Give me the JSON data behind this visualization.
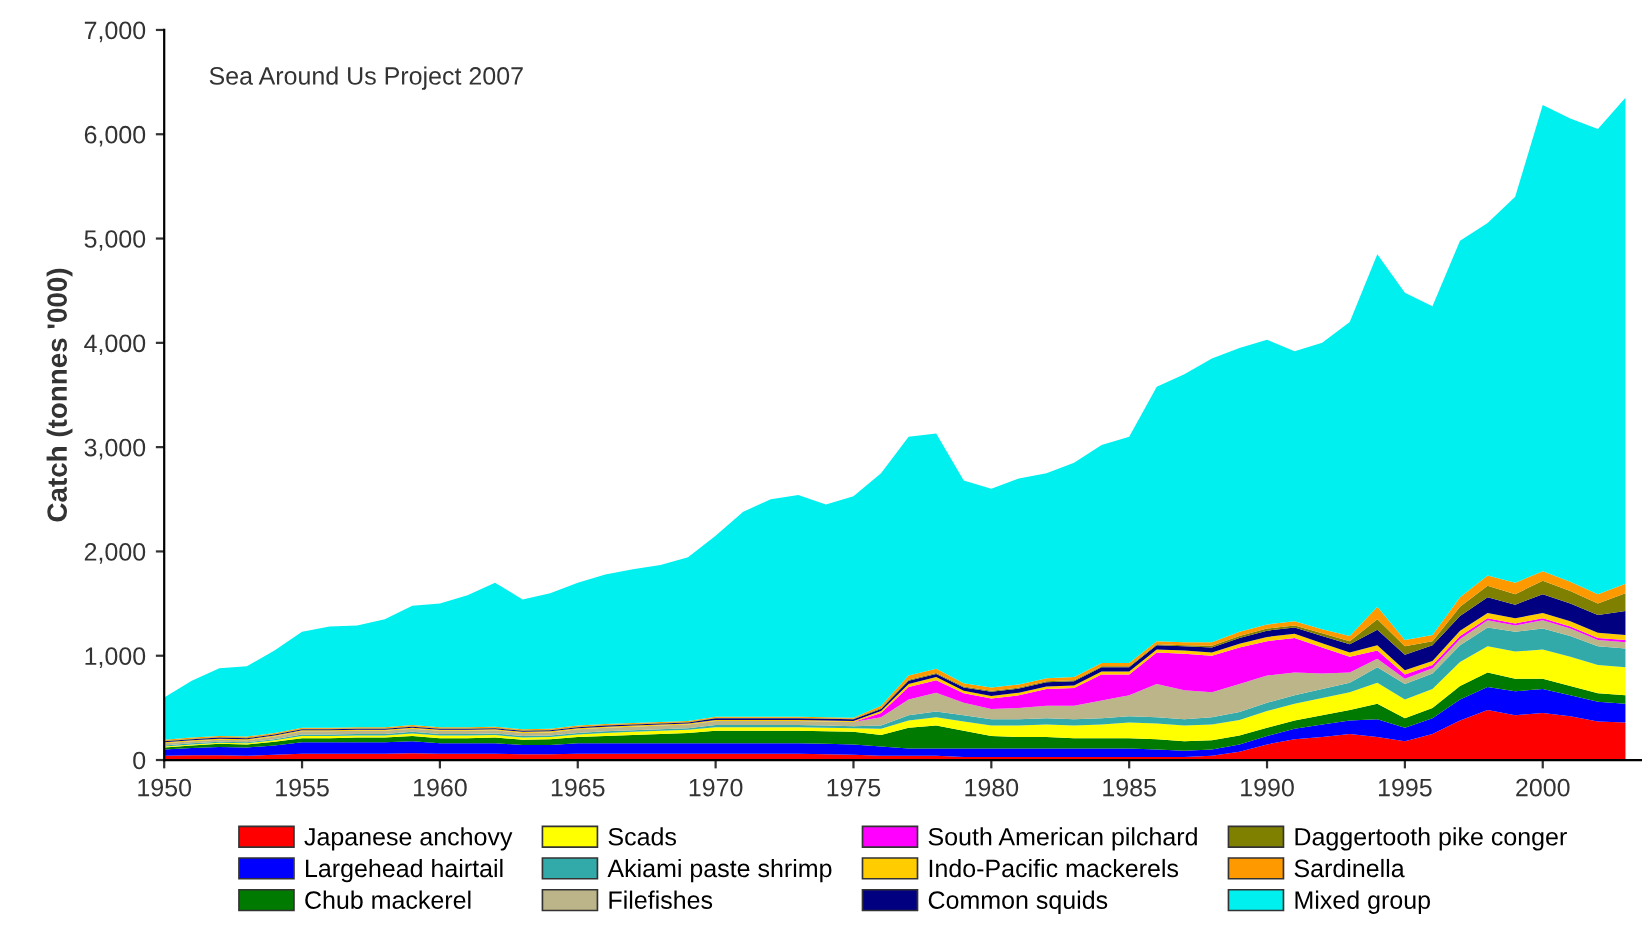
{
  "chart_data": {
    "type": "area",
    "stacked": true,
    "ylabel": "Catch (tonnes '000)",
    "annotations": [
      "Sea Around Us Project 2007"
    ],
    "x": [
      1950,
      1951,
      1952,
      1953,
      1954,
      1955,
      1956,
      1957,
      1958,
      1959,
      1960,
      1961,
      1962,
      1963,
      1964,
      1965,
      1966,
      1967,
      1968,
      1969,
      1970,
      1971,
      1972,
      1973,
      1974,
      1975,
      1976,
      1977,
      1978,
      1979,
      1980,
      1981,
      1982,
      1983,
      1984,
      1985,
      1986,
      1987,
      1988,
      1989,
      1990,
      1991,
      1992,
      1993,
      1994,
      1995,
      1996,
      1997,
      1998,
      1999,
      2000,
      2001,
      2002,
      2003
    ],
    "xlim": [
      1950,
      2003.6
    ],
    "xticks": [
      1950,
      1955,
      1960,
      1965,
      1970,
      1975,
      1980,
      1985,
      1990,
      1995,
      2000
    ],
    "ylim": [
      0,
      7000
    ],
    "yticks": [
      0,
      {
        "value": 1000,
        "label": "1,000"
      },
      {
        "value": 2000,
        "label": "2,000"
      },
      {
        "value": 3000,
        "label": "3,000"
      },
      {
        "value": 4000,
        "label": "4,000"
      },
      {
        "value": 5000,
        "label": "5,000"
      },
      {
        "value": 6000,
        "label": "6,000"
      },
      {
        "value": 7000,
        "label": "7,000"
      }
    ],
    "grid": false,
    "legend": "bottom",
    "series": [
      {
        "name": "Japanese anchovy",
        "color": "#ff0000",
        "values": [
          40,
          45,
          45,
          40,
          50,
          60,
          60,
          60,
          60,
          65,
          60,
          60,
          60,
          55,
          55,
          60,
          60,
          60,
          60,
          60,
          60,
          60,
          60,
          60,
          55,
          50,
          40,
          40,
          40,
          30,
          30,
          30,
          30,
          30,
          30,
          30,
          30,
          30,
          40,
          80,
          150,
          200,
          220,
          250,
          220,
          180,
          250,
          380,
          480,
          430,
          450,
          420,
          370,
          360
        ]
      },
      {
        "name": "Largehead hairtail",
        "color": "#0000ff",
        "values": [
          60,
          70,
          80,
          80,
          90,
          110,
          110,
          110,
          110,
          115,
          100,
          100,
          100,
          90,
          90,
          100,
          100,
          100,
          100,
          100,
          100,
          100,
          100,
          100,
          100,
          100,
          90,
          70,
          70,
          80,
          80,
          80,
          80,
          80,
          80,
          80,
          70,
          60,
          60,
          70,
          80,
          100,
          120,
          130,
          170,
          130,
          150,
          200,
          220,
          230,
          230,
          200,
          190,
          180
        ]
      },
      {
        "name": "Chub mackerel",
        "color": "#007a00",
        "values": [
          20,
          25,
          30,
          30,
          35,
          40,
          40,
          45,
          45,
          50,
          50,
          50,
          55,
          50,
          55,
          60,
          70,
          80,
          90,
          100,
          120,
          120,
          120,
          120,
          120,
          120,
          110,
          200,
          220,
          170,
          120,
          110,
          110,
          100,
          100,
          100,
          100,
          90,
          90,
          85,
          80,
          80,
          90,
          100,
          150,
          90,
          100,
          130,
          140,
          120,
          100,
          90,
          80,
          80
        ]
      },
      {
        "name": "Scads",
        "color": "#ffff00",
        "values": [
          10,
          10,
          10,
          10,
          15,
          20,
          20,
          20,
          20,
          25,
          25,
          25,
          25,
          20,
          20,
          25,
          30,
          30,
          30,
          30,
          35,
          35,
          35,
          35,
          35,
          35,
          60,
          70,
          80,
          90,
          100,
          110,
          120,
          120,
          130,
          150,
          150,
          150,
          150,
          150,
          160,
          160,
          165,
          170,
          200,
          180,
          180,
          230,
          250,
          260,
          280,
          280,
          270,
          270
        ]
      },
      {
        "name": "Akiami paste shrimp",
        "color": "#33aaaa",
        "values": [
          10,
          10,
          10,
          10,
          10,
          15,
          15,
          15,
          15,
          15,
          15,
          15,
          15,
          15,
          15,
          15,
          15,
          15,
          15,
          15,
          20,
          20,
          20,
          20,
          20,
          20,
          30,
          50,
          55,
          60,
          60,
          60,
          60,
          60,
          60,
          60,
          60,
          60,
          70,
          75,
          80,
          80,
          85,
          90,
          150,
          150,
          150,
          160,
          180,
          190,
          200,
          200,
          180,
          180
        ]
      },
      {
        "name": "Filefishes",
        "color": "#bdb58a",
        "values": [
          20,
          20,
          20,
          20,
          25,
          30,
          30,
          30,
          30,
          30,
          30,
          30,
          30,
          30,
          30,
          35,
          35,
          35,
          35,
          35,
          40,
          40,
          40,
          40,
          40,
          40,
          80,
          150,
          180,
          120,
          100,
          110,
          120,
          130,
          170,
          200,
          320,
          280,
          240,
          270,
          260,
          220,
          150,
          100,
          80,
          50,
          50,
          60,
          70,
          60,
          80,
          70,
          60,
          60
        ]
      },
      {
        "name": "South American pilchard",
        "color": "#ff00ff",
        "values": [
          0,
          0,
          0,
          0,
          0,
          0,
          0,
          0,
          0,
          0,
          0,
          0,
          0,
          0,
          0,
          0,
          0,
          0,
          0,
          0,
          0,
          0,
          0,
          0,
          0,
          0,
          40,
          120,
          120,
          90,
          100,
          120,
          160,
          170,
          250,
          200,
          300,
          350,
          350,
          350,
          330,
          330,
          250,
          150,
          80,
          40,
          30,
          30,
          20,
          20,
          20,
          20,
          20,
          20
        ]
      },
      {
        "name": "Indo-Pacific mackerels",
        "color": "#ffcc00",
        "values": [
          10,
          10,
          10,
          10,
          10,
          10,
          10,
          10,
          10,
          10,
          10,
          10,
          10,
          10,
          10,
          10,
          10,
          10,
          10,
          10,
          10,
          10,
          10,
          10,
          10,
          10,
          20,
          30,
          30,
          25,
          25,
          25,
          25,
          25,
          30,
          30,
          30,
          30,
          30,
          35,
          40,
          40,
          40,
          40,
          50,
          40,
          40,
          50,
          50,
          50,
          50,
          50,
          50,
          50
        ]
      },
      {
        "name": "Common squids",
        "color": "#000080",
        "values": [
          10,
          10,
          10,
          10,
          10,
          10,
          10,
          10,
          10,
          10,
          10,
          10,
          10,
          10,
          10,
          10,
          10,
          10,
          10,
          10,
          15,
          15,
          15,
          15,
          15,
          15,
          20,
          30,
          30,
          30,
          40,
          40,
          40,
          40,
          40,
          40,
          40,
          40,
          50,
          55,
          60,
          60,
          70,
          80,
          150,
          150,
          150,
          140,
          150,
          130,
          180,
          170,
          170,
          230
        ]
      },
      {
        "name": "Daggertooth pike conger",
        "color": "#808000",
        "values": [
          5,
          5,
          5,
          5,
          5,
          5,
          5,
          5,
          5,
          5,
          5,
          5,
          5,
          5,
          5,
          5,
          5,
          5,
          5,
          5,
          5,
          5,
          5,
          5,
          5,
          5,
          10,
          10,
          10,
          10,
          10,
          10,
          10,
          10,
          10,
          10,
          10,
          10,
          15,
          20,
          20,
          20,
          25,
          30,
          100,
          80,
          40,
          90,
          110,
          100,
          130,
          120,
          110,
          170
        ]
      },
      {
        "name": "Sardinella",
        "color": "#ff9900",
        "values": [
          10,
          10,
          10,
          10,
          10,
          10,
          10,
          10,
          10,
          10,
          10,
          10,
          10,
          10,
          10,
          10,
          10,
          10,
          10,
          10,
          10,
          10,
          10,
          10,
          10,
          10,
          20,
          40,
          40,
          30,
          30,
          30,
          30,
          30,
          30,
          30,
          30,
          30,
          35,
          40,
          40,
          40,
          40,
          50,
          120,
          60,
          60,
          90,
          100,
          110,
          90,
          90,
          90,
          90
        ]
      },
      {
        "name": "Mixed group",
        "color": "#00f0f0",
        "values": [
          405,
          545,
          650,
          675,
          790,
          920,
          970,
          975,
          1035,
          1145,
          1185,
          1265,
          1380,
          1245,
          1300,
          1370,
          1435,
          1475,
          1505,
          1570,
          1735,
          1965,
          2085,
          2125,
          2040,
          2125,
          2230,
          2290,
          2255,
          1945,
          1905,
          1975,
          1965,
          2055,
          2090,
          2170,
          2440,
          2570,
          2720,
          2720,
          2730,
          2590,
          2745,
          3010,
          3380,
          3330,
          3150,
          3420,
          3380,
          3700,
          4470,
          4440,
          4460,
          4660
        ]
      }
    ]
  }
}
